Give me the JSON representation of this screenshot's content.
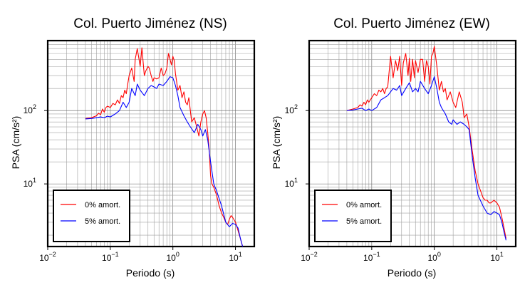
{
  "chart_data": [
    {
      "type": "line",
      "title": "Col. Puerto Jiménez (NS)",
      "xlabel": "Periodo (s)",
      "ylabel": "PSA (cm/s²)",
      "xscale": "log",
      "yscale": "log",
      "xlim": [
        0.01,
        20
      ],
      "ylim": [
        1.4,
        900
      ],
      "grid": true,
      "legend_position": "bottom-left",
      "xticks": [
        {
          "value": 0.01,
          "mantissa": "10",
          "exp": "−2"
        },
        {
          "value": 0.1,
          "mantissa": "10",
          "exp": "−1"
        },
        {
          "value": 1,
          "mantissa": "10",
          "exp": "0"
        },
        {
          "value": 10,
          "mantissa": "10",
          "exp": "1"
        }
      ],
      "yticks": [
        {
          "value": 10,
          "mantissa": "10",
          "exp": "1"
        },
        {
          "value": 100,
          "mantissa": "10",
          "exp": "2"
        }
      ],
      "series": [
        {
          "name": "0% amort.",
          "color": "#ff0000",
          "x": [
            0.04,
            0.05,
            0.06,
            0.065,
            0.07,
            0.075,
            0.08,
            0.085,
            0.09,
            0.1,
            0.11,
            0.12,
            0.13,
            0.14,
            0.15,
            0.16,
            0.17,
            0.18,
            0.19,
            0.2,
            0.22,
            0.24,
            0.25,
            0.27,
            0.3,
            0.32,
            0.35,
            0.37,
            0.4,
            0.42,
            0.45,
            0.48,
            0.5,
            0.55,
            0.6,
            0.65,
            0.7,
            0.75,
            0.8,
            0.85,
            0.9,
            0.95,
            1.0,
            1.05,
            1.1,
            1.2,
            1.3,
            1.4,
            1.5,
            1.6,
            1.7,
            1.8,
            1.9,
            2.0,
            2.2,
            2.4,
            2.6,
            2.8,
            3.0,
            3.2,
            3.4,
            3.6,
            3.8,
            4.0,
            4.2,
            4.5,
            5.0,
            5.5,
            6.0,
            6.5,
            7.0,
            7.5,
            8.0,
            8.5,
            9.0,
            10.0,
            11.0,
            12.0,
            13.0
          ],
          "y": [
            78,
            80,
            85,
            92,
            88,
            105,
            95,
            110,
            115,
            110,
            125,
            120,
            140,
            125,
            160,
            150,
            190,
            170,
            230,
            300,
            380,
            250,
            500,
            700,
            400,
            720,
            300,
            350,
            400,
            380,
            300,
            250,
            280,
            270,
            280,
            380,
            300,
            320,
            380,
            600,
            500,
            420,
            550,
            480,
            320,
            190,
            220,
            150,
            180,
            130,
            120,
            150,
            100,
            70,
            80,
            60,
            45,
            70,
            90,
            100,
            80,
            50,
            30,
            13,
            10,
            9,
            7,
            5,
            4,
            3.5,
            3,
            2.8,
            3.3,
            3.7,
            3.5,
            3.0,
            2.3,
            1.8,
            1.4
          ]
        },
        {
          "name": "5% amort.",
          "color": "#0000ff",
          "x": [
            0.04,
            0.05,
            0.06,
            0.07,
            0.08,
            0.09,
            0.1,
            0.12,
            0.14,
            0.16,
            0.18,
            0.2,
            0.22,
            0.25,
            0.27,
            0.3,
            0.35,
            0.4,
            0.45,
            0.5,
            0.55,
            0.6,
            0.7,
            0.8,
            0.9,
            1.0,
            1.1,
            1.2,
            1.3,
            1.5,
            1.7,
            1.9,
            2.2,
            2.5,
            2.8,
            3.0,
            3.3,
            3.6,
            4.0,
            4.5,
            5.0,
            6.0,
            7.0,
            8.0,
            9.0,
            10.0,
            11.0,
            12.0,
            13.0
          ],
          "y": [
            77,
            78,
            80,
            82,
            80,
            84,
            82,
            90,
            100,
            130,
            110,
            130,
            200,
            160,
            230,
            190,
            160,
            200,
            220,
            210,
            200,
            230,
            220,
            250,
            290,
            280,
            220,
            160,
            110,
            85,
            70,
            60,
            50,
            65,
            55,
            45,
            55,
            40,
            20,
            10,
            8,
            5,
            3,
            2.6,
            2.9,
            2.8,
            2.5,
            1.8,
            1.4
          ]
        }
      ],
      "legend": [
        {
          "label": "0% amort.",
          "color": "#ff0000"
        },
        {
          "label": "5% amort.",
          "color": "#0000ff"
        }
      ]
    },
    {
      "type": "line",
      "title": "Col. Puerto Jiménez (EW)",
      "xlabel": "Periodo (s)",
      "ylabel": "PSA (cm/s²)",
      "xscale": "log",
      "yscale": "log",
      "xlim": [
        0.01,
        20
      ],
      "ylim": [
        1.4,
        900
      ],
      "grid": true,
      "legend_position": "bottom-left",
      "xticks": [
        {
          "value": 0.01,
          "mantissa": "10",
          "exp": "−2"
        },
        {
          "value": 0.1,
          "mantissa": "10",
          "exp": "−1"
        },
        {
          "value": 1,
          "mantissa": "10",
          "exp": "0"
        },
        {
          "value": 10,
          "mantissa": "10",
          "exp": "1"
        }
      ],
      "yticks": [
        {
          "value": 10,
          "mantissa": "10",
          "exp": "1"
        },
        {
          "value": 100,
          "mantissa": "10",
          "exp": "2"
        }
      ],
      "series": [
        {
          "name": "0% amort.",
          "color": "#ff0000",
          "x": [
            0.04,
            0.05,
            0.06,
            0.065,
            0.07,
            0.075,
            0.08,
            0.085,
            0.09,
            0.1,
            0.11,
            0.12,
            0.13,
            0.14,
            0.15,
            0.16,
            0.17,
            0.18,
            0.2,
            0.22,
            0.24,
            0.26,
            0.28,
            0.3,
            0.32,
            0.35,
            0.38,
            0.4,
            0.42,
            0.45,
            0.48,
            0.5,
            0.55,
            0.6,
            0.65,
            0.7,
            0.75,
            0.8,
            0.85,
            0.9,
            0.95,
            1.0,
            1.1,
            1.2,
            1.3,
            1.4,
            1.5,
            1.6,
            1.8,
            2.0,
            2.2,
            2.5,
            2.8,
            3.0,
            3.3,
            3.6,
            4.0,
            4.5,
            5.0,
            5.5,
            6.0,
            6.5,
            7.0,
            7.5,
            8.0,
            9.0,
            10.0,
            11.0,
            12.0,
            13.0,
            14.0
          ],
          "y": [
            100,
            105,
            110,
            120,
            115,
            130,
            120,
            140,
            130,
            150,
            170,
            160,
            190,
            180,
            200,
            170,
            200,
            210,
            550,
            280,
            480,
            350,
            550,
            220,
            450,
            600,
            300,
            520,
            250,
            500,
            280,
            480,
            330,
            500,
            500,
            250,
            480,
            400,
            230,
            550,
            600,
            750,
            400,
            190,
            250,
            180,
            200,
            140,
            180,
            130,
            110,
            180,
            130,
            80,
            90,
            60,
            30,
            15,
            10,
            8,
            6.5,
            6,
            6,
            5.5,
            5.5,
            6,
            5.5,
            4.8,
            3.5,
            2.5,
            1.8
          ]
        },
        {
          "name": "5% amort.",
          "color": "#0000ff",
          "x": [
            0.04,
            0.05,
            0.06,
            0.07,
            0.08,
            0.09,
            0.1,
            0.12,
            0.14,
            0.16,
            0.18,
            0.2,
            0.22,
            0.25,
            0.28,
            0.3,
            0.35,
            0.4,
            0.45,
            0.5,
            0.55,
            0.6,
            0.7,
            0.8,
            0.9,
            1.0,
            1.1,
            1.2,
            1.3,
            1.5,
            1.7,
            1.9,
            2.0,
            2.3,
            2.6,
            3.0,
            3.3,
            3.6,
            4.0,
            4.5,
            5.0,
            6.0,
            7.0,
            8.0,
            9.0,
            10.0,
            11.0,
            12.0,
            13.0,
            14.0
          ],
          "y": [
            100,
            102,
            105,
            108,
            100,
            105,
            100,
            110,
            140,
            150,
            160,
            180,
            200,
            190,
            220,
            160,
            200,
            240,
            180,
            200,
            180,
            250,
            200,
            170,
            220,
            290,
            200,
            130,
            110,
            90,
            70,
            65,
            75,
            65,
            70,
            65,
            60,
            55,
            25,
            12,
            7,
            5,
            4,
            3.8,
            4.2,
            4.0,
            3.8,
            3.0,
            2.2,
            1.7
          ]
        }
      ],
      "legend": [
        {
          "label": "0% amort.",
          "color": "#ff0000"
        },
        {
          "label": "5% amort.",
          "color": "#0000ff"
        }
      ]
    }
  ]
}
